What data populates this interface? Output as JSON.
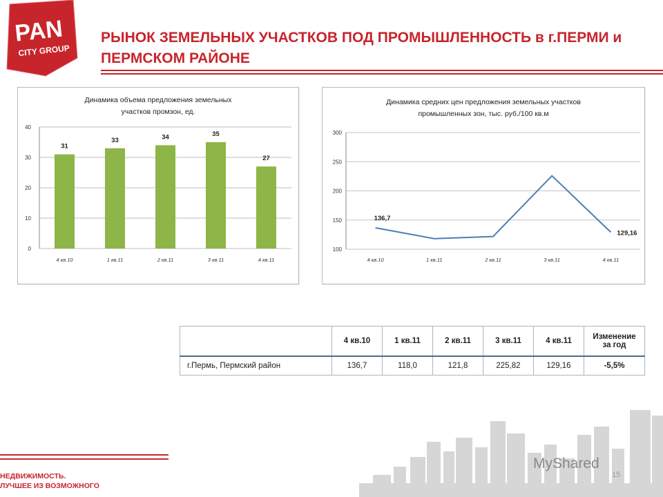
{
  "logo": {
    "line1": "PAN",
    "line2": "CITY GROUP"
  },
  "page_title": "РЫНОК ЗЕМЕЛЬНЫХ УЧАСТКОВ ПОД ПРОМЫШЛЕННОСТЬ в г.ПЕРМИ и ПЕРМСКОМ РАЙОНЕ",
  "chart_data": [
    {
      "type": "bar",
      "title": "Динамика объема предложения земельных участков промзон, ед.",
      "categories": [
        "4 кв.10",
        "1 кв.11",
        "2 кв.11",
        "3 кв.11",
        "4 кв.11"
      ],
      "values": [
        31,
        33,
        34,
        35,
        27
      ],
      "data_labels": [
        "31",
        "33",
        "34",
        "35",
        "27"
      ],
      "ylim": [
        0,
        40
      ],
      "yticks": [
        "0",
        "10",
        "20",
        "30",
        "40"
      ],
      "color": "#8db548",
      "grid": true
    },
    {
      "type": "line",
      "title": "Динамика средних цен предложения земельных участков промышленных зон, тыс. руб./100 кв.м",
      "categories": [
        "4 кв.10",
        "1 кв.11",
        "2 кв.11",
        "3 кв.11",
        "4 кв.11"
      ],
      "values": [
        136.7,
        118.0,
        121.8,
        225.82,
        129.16
      ],
      "data_labels": [
        "136,7",
        "",
        "",
        "",
        "129,16"
      ],
      "ylim": [
        100,
        300
      ],
      "yticks": [
        "100",
        "150",
        "200",
        "250",
        "300"
      ],
      "color": "#4a7fb5",
      "grid": true
    }
  ],
  "table": {
    "headers": [
      "4 кв.10",
      "1 кв.11",
      "2 кв.11",
      "3 кв.11",
      "4 кв.11"
    ],
    "change_header_line1": "Изменение",
    "change_header_line2": "за год",
    "row_label": "г.Пермь, Пермский район",
    "row_values": [
      "136,7",
      "118,0",
      "121,8",
      "225,82",
      "129,16"
    ],
    "row_change": "-5,5%"
  },
  "footer": {
    "line1": "НЕДВИЖИМОСТЬ.",
    "line2": "ЛУЧШЕЕ ИЗ ВОЗМОЖНОГО"
  },
  "watermark": "MyShared",
  "page_number": "15",
  "colors": {
    "brand_red": "#c8242b",
    "bar_green": "#8db548",
    "line_blue": "#4a7fb5"
  }
}
